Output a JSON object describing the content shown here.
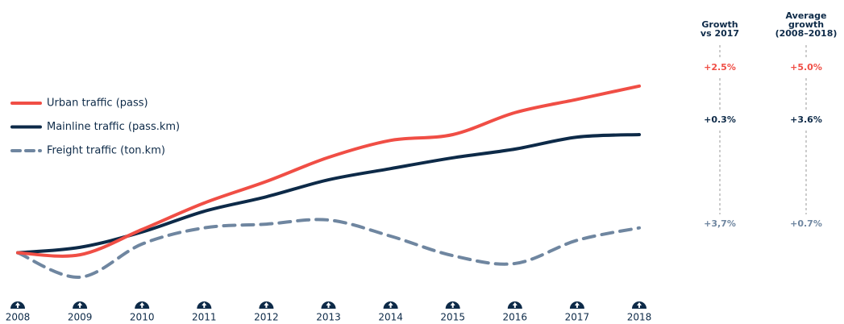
{
  "chart_data": {
    "type": "line",
    "categories": [
      "2008",
      "2009",
      "2010",
      "2011",
      "2012",
      "2013",
      "2014",
      "2015",
      "2016",
      "2017",
      "2018"
    ],
    "series": [
      {
        "name": "Urban traffic (pass)",
        "color": "#f04e45",
        "dash": false,
        "values": [
          100,
          99.5,
          105.6,
          112,
          117.2,
          123,
          127.1,
          128.5,
          133.8,
          137,
          140.2
        ]
      },
      {
        "name": "Mainline traffic (pass.km)",
        "color": "#0d2a48",
        "dash": false,
        "values": [
          100,
          101.3,
          105,
          110,
          113.5,
          117.6,
          120.3,
          122.9,
          125,
          127.9,
          128.5
        ]
      },
      {
        "name": "Freight traffic (ton.km)",
        "color": "#6f86a0",
        "dash": true,
        "values": [
          100,
          94.1,
          102.1,
          106,
          106.9,
          107.9,
          104,
          99.3,
          97.4,
          103,
          106
        ]
      }
    ],
    "ylim": [
      90,
      160
    ],
    "legend": "left"
  },
  "growth_table": {
    "headers": [
      [
        "Growth",
        "vs 2017"
      ],
      [
        "Average",
        "growth",
        "(2008–2018)"
      ]
    ],
    "rows": [
      [
        "+2.5%",
        "+5.0%"
      ],
      [
        "+0.3%",
        "+3.6%"
      ],
      [
        "+3,7%",
        "+0.7%"
      ]
    ]
  }
}
